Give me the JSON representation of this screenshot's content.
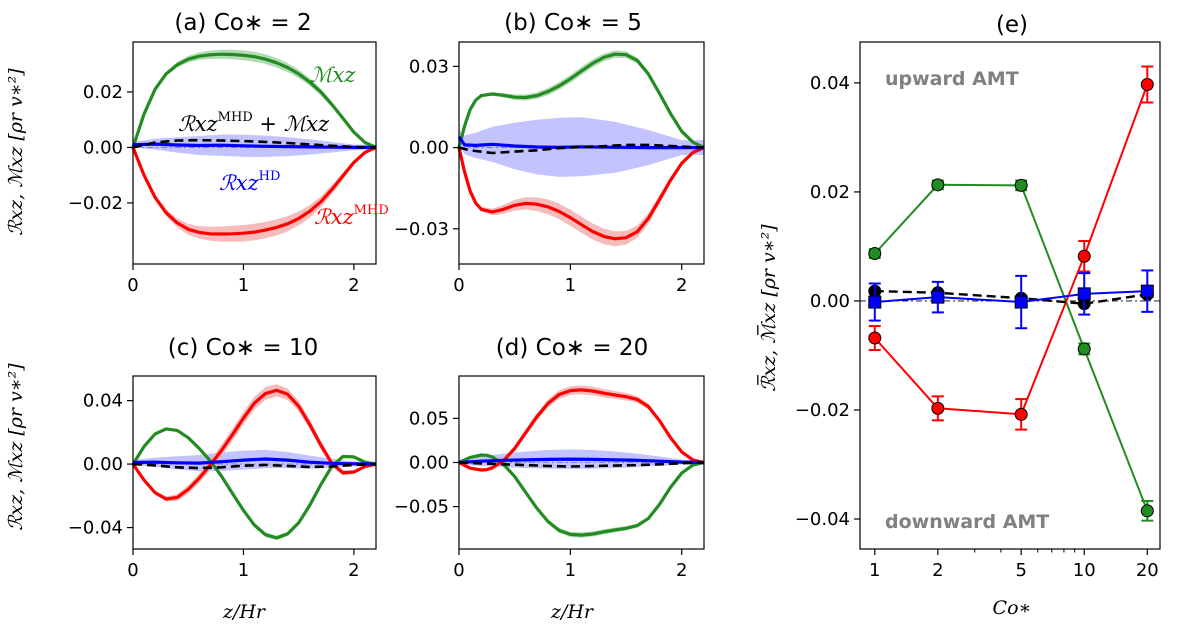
{
  "colors": {
    "maxwell": "#228b22",
    "mhd": "#ff0000",
    "hd": "#0000ff",
    "sum": "#000000",
    "hd_band": "#9999ff",
    "mhd_band": "#f5a3a3",
    "maxwell_band": "#a8d5a8",
    "amt_text": "#808080"
  },
  "chart_data": [
    {
      "id": "a",
      "type": "line",
      "title": "(a) Co∗ = 2",
      "xlabel": "",
      "ylabel": "ℛxz, ℳxz [ρr v∗²]",
      "xlim": [
        0,
        2.2
      ],
      "ylim": [
        -0.042,
        0.038
      ],
      "xticks": [
        0,
        1,
        2
      ],
      "yticks": [
        -0.02,
        0.0,
        0.02
      ],
      "ytick_labels": [
        "−0.02",
        "0.00",
        "0.02"
      ],
      "xtick_labels": [
        "0",
        "1",
        "2"
      ],
      "series": [
        {
          "name": "Mxz",
          "color": "#228b22",
          "band": 0.0018,
          "x": [
            0,
            0.1,
            0.2,
            0.3,
            0.4,
            0.5,
            0.6,
            0.7,
            0.8,
            0.9,
            1.0,
            1.1,
            1.2,
            1.3,
            1.4,
            1.5,
            1.6,
            1.7,
            1.8,
            1.9,
            2.0,
            2.1,
            2.2
          ],
          "y": [
            0,
            0.012,
            0.021,
            0.0265,
            0.0298,
            0.0318,
            0.0329,
            0.0334,
            0.0336,
            0.0335,
            0.0332,
            0.0327,
            0.0318,
            0.0305,
            0.0288,
            0.0265,
            0.0236,
            0.02,
            0.0155,
            0.0105,
            0.0055,
            0.0018,
            0
          ]
        },
        {
          "name": "RMHD",
          "color": "#ff0000",
          "band": 0.003,
          "x": [
            0,
            0.1,
            0.2,
            0.3,
            0.4,
            0.5,
            0.6,
            0.7,
            0.8,
            0.9,
            1.0,
            1.1,
            1.2,
            1.3,
            1.4,
            1.5,
            1.6,
            1.7,
            1.8,
            1.9,
            2.0,
            2.1,
            2.2
          ],
          "y": [
            0,
            -0.01,
            -0.018,
            -0.0235,
            -0.0272,
            -0.0295,
            -0.0306,
            -0.0311,
            -0.0312,
            -0.0311,
            -0.0309,
            -0.0305,
            -0.0298,
            -0.0288,
            -0.0275,
            -0.0256,
            -0.023,
            -0.0196,
            -0.0152,
            -0.0103,
            -0.0054,
            -0.0018,
            0
          ]
        },
        {
          "name": "RHD",
          "color": "#0000ff",
          "band": 0.004,
          "band_shape": "bulge",
          "x": [
            0,
            0.2,
            0.4,
            0.6,
            0.8,
            1.0,
            1.2,
            1.4,
            1.6,
            1.8,
            2.0,
            2.2
          ],
          "y": [
            0.001,
            0.0012,
            0.0009,
            0.0007,
            0.0008,
            0.0006,
            0.0004,
            0.0003,
            0.0002,
            0.0001,
            0.0,
            0
          ]
        },
        {
          "name": "RMHD+Mxz",
          "color": "#000000",
          "dashed": true,
          "x": [
            0,
            0.2,
            0.4,
            0.6,
            0.8,
            1.0,
            1.2,
            1.4,
            1.6,
            1.8,
            2.0,
            2.2
          ],
          "y": [
            0,
            0.0018,
            0.0025,
            0.0026,
            0.0025,
            0.0023,
            0.002,
            0.0016,
            0.0011,
            0.0006,
            0.0002,
            0
          ]
        }
      ]
    },
    {
      "id": "b",
      "type": "line",
      "title": "(b) Co∗ = 5",
      "xlabel": "",
      "ylabel": "",
      "xlim": [
        0,
        2.2
      ],
      "ylim": [
        -0.043,
        0.039
      ],
      "xticks": [
        0,
        1,
        2
      ],
      "yticks": [
        -0.03,
        0.0,
        0.03
      ],
      "ytick_labels": [
        "−0.03",
        "0.00",
        "0.03"
      ],
      "xtick_labels": [
        "0",
        "1",
        "2"
      ],
      "series": [
        {
          "name": "Mxz",
          "color": "#228b22",
          "band": 0.0015,
          "x": [
            0,
            0.05,
            0.1,
            0.15,
            0.2,
            0.3,
            0.4,
            0.5,
            0.6,
            0.7,
            0.8,
            0.9,
            1.0,
            1.1,
            1.2,
            1.3,
            1.4,
            1.5,
            1.6,
            1.7,
            1.8,
            1.9,
            2.0,
            2.1,
            2.2
          ],
          "y": [
            0,
            0.008,
            0.014,
            0.0175,
            0.0192,
            0.0198,
            0.0193,
            0.0186,
            0.0185,
            0.0192,
            0.0207,
            0.0228,
            0.0254,
            0.0283,
            0.0311,
            0.0333,
            0.0345,
            0.0343,
            0.0322,
            0.0272,
            0.02,
            0.0125,
            0.006,
            0.002,
            0
          ]
        },
        {
          "name": "RMHD",
          "color": "#ff0000",
          "band": 0.003,
          "x": [
            0,
            0.05,
            0.1,
            0.15,
            0.2,
            0.3,
            0.4,
            0.5,
            0.6,
            0.7,
            0.8,
            0.9,
            1.0,
            1.1,
            1.2,
            1.3,
            1.4,
            1.5,
            1.6,
            1.7,
            1.8,
            1.9,
            2.0,
            2.1,
            2.2
          ],
          "y": [
            0,
            -0.009,
            -0.016,
            -0.0205,
            -0.0228,
            -0.0238,
            -0.0228,
            -0.0213,
            -0.0206,
            -0.0209,
            -0.0219,
            -0.0236,
            -0.0259,
            -0.0285,
            -0.031,
            -0.0328,
            -0.0337,
            -0.0333,
            -0.0311,
            -0.0262,
            -0.0192,
            -0.012,
            -0.0058,
            -0.0018,
            0
          ]
        },
        {
          "name": "RHD",
          "color": "#0000ff",
          "band": 0.011,
          "band_shape": "bulge",
          "x": [
            0,
            0.05,
            0.15,
            0.3,
            0.5,
            0.7,
            0.9,
            1.1,
            1.4,
            1.7,
            2.0,
            2.2
          ],
          "y": [
            0.004,
            0.001,
            0.0008,
            0.0012,
            0.0006,
            0.0002,
            0.0001,
            0.0003,
            0.0001,
            0.0,
            0.0,
            0
          ]
        },
        {
          "name": "RMHD+Mxz",
          "color": "#000000",
          "dashed": true,
          "x": [
            0,
            0.1,
            0.3,
            0.5,
            0.7,
            0.9,
            1.1,
            1.3,
            1.5,
            1.7,
            1.9,
            2.2
          ],
          "y": [
            0,
            -0.001,
            -0.002,
            -0.0015,
            -0.001,
            -0.0002,
            0.0002,
            0.0005,
            0.001,
            0.001,
            0.0006,
            0
          ]
        }
      ]
    },
    {
      "id": "c",
      "type": "line",
      "title": "(c) Co∗ = 10",
      "xlabel": "z/Hr",
      "ylabel": "ℛxz, ℳxz [ρr v∗²]",
      "xlim": [
        0,
        2.2
      ],
      "ylim": [
        -0.0535,
        0.0555
      ],
      "xticks": [
        0,
        1,
        2
      ],
      "yticks": [
        -0.04,
        0.0,
        0.04
      ],
      "ytick_labels": [
        "−0.04",
        "0.00",
        "0.04"
      ],
      "xtick_labels": [
        "0",
        "1",
        "2"
      ],
      "series": [
        {
          "name": "Mxz",
          "color": "#228b22",
          "band": 0.0015,
          "x": [
            0,
            0.1,
            0.2,
            0.3,
            0.4,
            0.5,
            0.6,
            0.7,
            0.8,
            0.9,
            1.0,
            1.1,
            1.2,
            1.3,
            1.4,
            1.5,
            1.6,
            1.7,
            1.8,
            1.9,
            2.0,
            2.1,
            2.2
          ],
          "y": [
            0,
            0.011,
            0.019,
            0.0222,
            0.0212,
            0.0166,
            0.0098,
            0.002,
            -0.0075,
            -0.0185,
            -0.0292,
            -0.0385,
            -0.0445,
            -0.0465,
            -0.044,
            -0.037,
            -0.026,
            -0.013,
            -0.0015,
            0.0048,
            0.0045,
            0.0012,
            0
          ]
        },
        {
          "name": "RMHD",
          "color": "#ff0000",
          "band": 0.004,
          "x": [
            0,
            0.1,
            0.2,
            0.3,
            0.4,
            0.5,
            0.6,
            0.7,
            0.8,
            0.9,
            1.0,
            1.1,
            1.2,
            1.3,
            1.4,
            1.5,
            1.6,
            1.7,
            1.8,
            1.9,
            2.0,
            2.1,
            2.2
          ],
          "y": [
            0,
            -0.01,
            -0.018,
            -0.022,
            -0.021,
            -0.016,
            -0.0088,
            -0.0005,
            0.0085,
            0.0185,
            0.029,
            0.0385,
            0.0445,
            0.0465,
            0.044,
            0.0365,
            0.025,
            0.012,
            0.0005,
            -0.0055,
            -0.005,
            -0.0015,
            0
          ]
        },
        {
          "name": "RHD",
          "color": "#0000ff",
          "band": 0.006,
          "band_shape": "bulge",
          "x": [
            0,
            0.2,
            0.4,
            0.6,
            0.8,
            1.0,
            1.2,
            1.4,
            1.6,
            1.8,
            2.0,
            2.2
          ],
          "y": [
            0.001,
            0.0012,
            0.0008,
            0.0006,
            0.0015,
            0.0025,
            0.0032,
            0.0025,
            0.0012,
            0.0005,
            0.0002,
            0
          ]
        },
        {
          "name": "RMHD+Mxz",
          "color": "#000000",
          "dashed": true,
          "x": [
            0,
            0.2,
            0.4,
            0.6,
            0.8,
            1.0,
            1.2,
            1.4,
            1.6,
            1.8,
            2.0,
            2.2
          ],
          "y": [
            0,
            -0.0008,
            -0.002,
            -0.0025,
            -0.002,
            -0.001,
            -0.0005,
            -0.0012,
            -0.0018,
            -0.0015,
            -0.0005,
            0
          ]
        }
      ]
    },
    {
      "id": "d",
      "type": "line",
      "title": "(d) Co∗ = 20",
      "xlabel": "z/Hr",
      "ylabel": "",
      "xlim": [
        0,
        2.2
      ],
      "ylim": [
        -0.098,
        0.098
      ],
      "xticks": [
        0,
        1,
        2
      ],
      "yticks": [
        -0.05,
        0.0,
        0.05
      ],
      "ytick_labels": [
        "−0.05",
        "0.00",
        "0.05"
      ],
      "xtick_labels": [
        "0",
        "1",
        "2"
      ],
      "series": [
        {
          "name": "Mxz",
          "color": "#228b22",
          "band": 0.003,
          "x": [
            0,
            0.1,
            0.2,
            0.25,
            0.3,
            0.4,
            0.5,
            0.6,
            0.7,
            0.8,
            0.9,
            1.0,
            1.1,
            1.2,
            1.3,
            1.4,
            1.5,
            1.6,
            1.7,
            1.8,
            1.9,
            2.0,
            2.1,
            2.2
          ],
          "y": [
            0,
            0.0058,
            0.0085,
            0.0082,
            0.0062,
            -0.002,
            -0.016,
            -0.034,
            -0.052,
            -0.067,
            -0.077,
            -0.0815,
            -0.0822,
            -0.081,
            -0.0785,
            -0.0765,
            -0.0745,
            -0.0715,
            -0.0635,
            -0.0475,
            -0.028,
            -0.012,
            -0.003,
            0
          ]
        },
        {
          "name": "RMHD",
          "color": "#ff0000",
          "band": 0.005,
          "x": [
            0,
            0.1,
            0.2,
            0.25,
            0.3,
            0.4,
            0.5,
            0.6,
            0.7,
            0.8,
            0.9,
            1.0,
            1.1,
            1.2,
            1.3,
            1.4,
            1.5,
            1.6,
            1.7,
            1.8,
            1.9,
            2.0,
            2.1,
            2.2
          ],
          "y": [
            0,
            -0.0065,
            -0.0085,
            -0.008,
            -0.006,
            0.002,
            0.016,
            0.034,
            0.052,
            0.067,
            0.077,
            0.0815,
            0.0822,
            0.081,
            0.0785,
            0.0765,
            0.0745,
            0.0715,
            0.0635,
            0.0475,
            0.028,
            0.012,
            0.003,
            0
          ]
        },
        {
          "name": "RHD",
          "color": "#0000ff",
          "band": 0.011,
          "band_shape": "bulge",
          "x": [
            0,
            0.2,
            0.4,
            0.6,
            0.8,
            1.0,
            1.2,
            1.4,
            1.6,
            1.8,
            2.0,
            2.2
          ],
          "y": [
            0.0,
            0.0015,
            0.0025,
            0.003,
            0.0035,
            0.0038,
            0.0035,
            0.003,
            0.0025,
            0.0015,
            0.0005,
            0
          ]
        },
        {
          "name": "RMHD+Mxz",
          "color": "#000000",
          "dashed": true,
          "x": [
            0,
            0.2,
            0.4,
            0.6,
            0.8,
            1.0,
            1.2,
            1.4,
            1.6,
            1.8,
            2.0,
            2.2
          ],
          "y": [
            0,
            -0.001,
            -0.002,
            -0.003,
            -0.004,
            -0.0045,
            -0.004,
            -0.0035,
            -0.003,
            -0.002,
            -0.0008,
            0
          ]
        }
      ]
    },
    {
      "id": "e",
      "type": "line",
      "title": "(e)",
      "xlabel": "Co∗",
      "ylabel": "ℛ̅xz, ℳ̅xz [ρr v∗²]",
      "xscale": "log",
      "xlim": [
        0.85,
        23
      ],
      "ylim": [
        -0.0455,
        0.0475
      ],
      "xticks": [
        1,
        2,
        5,
        10,
        20
      ],
      "yticks": [
        -0.04,
        -0.02,
        0.0,
        0.02,
        0.04
      ],
      "ytick_labels": [
        "−0.04",
        "−0.02",
        "0.00",
        "0.02",
        "0.04"
      ],
      "xtick_labels": [
        "1",
        "2",
        "5",
        "10",
        "20"
      ],
      "series": [
        {
          "name": "Mxz",
          "color": "#228b22",
          "marker": "circle",
          "x": [
            1,
            2,
            5,
            10,
            20
          ],
          "y": [
            0.0087,
            0.0213,
            0.0212,
            -0.0088,
            -0.0385
          ],
          "err": [
            0.0008,
            0.0008,
            0.0009,
            0.001,
            0.0018
          ]
        },
        {
          "name": "RMHD",
          "color": "#ff0000",
          "marker": "circle",
          "x": [
            1,
            2,
            5,
            10,
            20
          ],
          "y": [
            -0.0068,
            -0.0197,
            -0.0208,
            0.0082,
            0.0397
          ],
          "err": [
            0.0022,
            0.0022,
            0.0028,
            0.0028,
            0.0033
          ]
        },
        {
          "name": "RHD",
          "color": "#0000ff",
          "marker": "square",
          "x": [
            1,
            2,
            5,
            10,
            20
          ],
          "y": [
            -0.0002,
            0.0007,
            -0.0002,
            0.0013,
            0.0018
          ],
          "err": [
            0.0034,
            0.0028,
            0.0048,
            0.0038,
            0.0038
          ]
        },
        {
          "name": "RMHD+Mxz",
          "color": "#000000",
          "marker": "circle",
          "dashed": true,
          "x": [
            1,
            2,
            5,
            10,
            20
          ],
          "y": [
            0.0018,
            0.0015,
            0.0005,
            -0.0005,
            0.0012
          ],
          "err": [
            0,
            0,
            0,
            0,
            0
          ]
        }
      ]
    }
  ],
  "annotations": {
    "maxwell_label": "ℳxz",
    "sum_label_main": "ℛxz",
    "sum_label_sup": "MHD",
    "sum_label_rest": " + ℳxz",
    "hd_label_main": "ℛxz",
    "hd_label_sup": "HD",
    "mhd_label_main": "ℛxz",
    "mhd_label_sup": "MHD",
    "upward": "upward AMT",
    "downward": "downward AMT"
  }
}
